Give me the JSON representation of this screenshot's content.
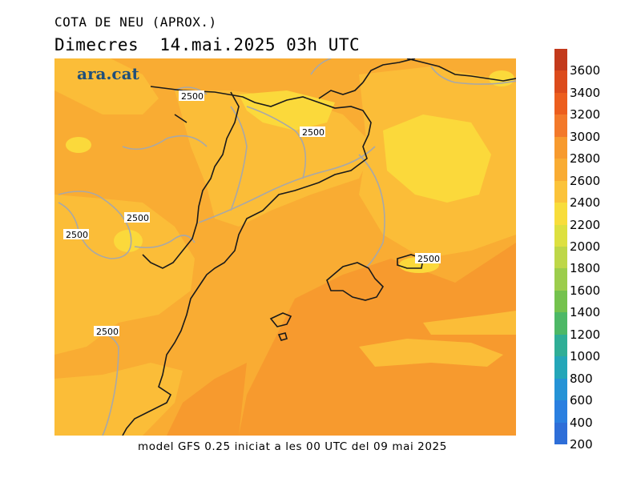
{
  "header": {
    "title": "COTA DE NEU (APROX.)",
    "subtitle": "Dimecres  14.mai.2025 03h UTC"
  },
  "map": {
    "logo_text": "ara.cat",
    "contour_value_label": "2500",
    "colors": {
      "orange_dark": "#f79a2e",
      "orange_mid": "#f9ac33",
      "orange_light": "#fbbd38",
      "yellow": "#fbd93b",
      "coast": "#1a1a1a",
      "border_grey": "#a8a8a8",
      "logo_color": "#1f4f7a"
    }
  },
  "footer": {
    "note": "model GFS 0.25 iniciat a les 00 UTC del 09 mai 2025"
  },
  "legend": {
    "labels": [
      "3600",
      "3400",
      "3200",
      "3000",
      "2800",
      "2600",
      "2400",
      "2200",
      "2000",
      "1800",
      "1600",
      "1400",
      "1200",
      "1000",
      "800",
      "600",
      "400",
      "200"
    ],
    "colors": [
      "#c33a1c",
      "#dc4b1c",
      "#ec5e1e",
      "#f3792a",
      "#f79a2e",
      "#f9ac33",
      "#fbc33a",
      "#f8dd3b",
      "#dde040",
      "#bed748",
      "#9ccd4c",
      "#74c24d",
      "#4db866",
      "#2fae96",
      "#24a6b8",
      "#2593d6",
      "#2a7fe0",
      "#2e6ed8"
    ]
  }
}
